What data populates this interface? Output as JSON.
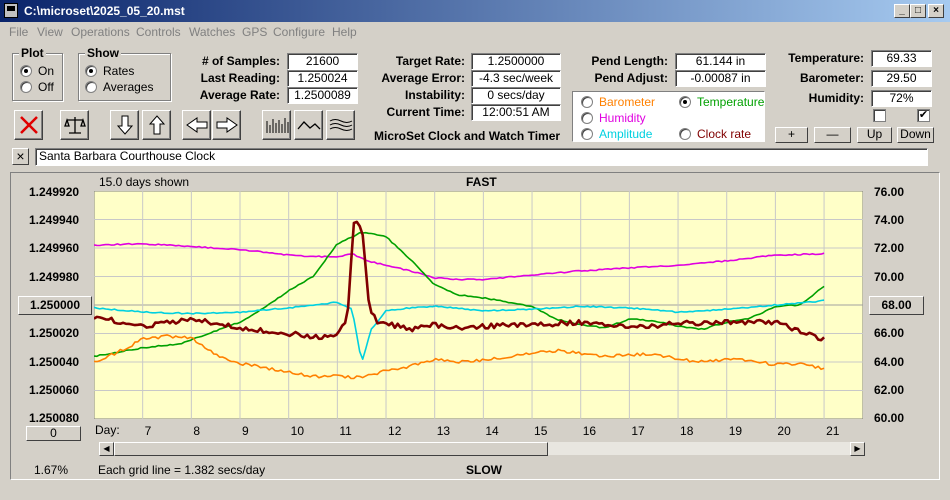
{
  "window": {
    "title": "C:\\microset\\2025_05_20.mst"
  },
  "menu": [
    "File",
    "View",
    "Operations",
    "Controls",
    "Watches",
    "GPS",
    "Configure",
    "Help"
  ],
  "plot_group": {
    "title": "Plot",
    "options": [
      "On",
      "Off"
    ],
    "selected": "On"
  },
  "show_group": {
    "title": "Show",
    "options": [
      "Rates",
      "Averages"
    ],
    "selected": "Rates"
  },
  "stats": {
    "samples_label": "# of Samples:",
    "samples": "21600",
    "last_label": "Last Reading:",
    "last": "1.250024",
    "avg_label": "Average Rate:",
    "avg": "1.2500089",
    "target_label": "Target Rate:",
    "target": "1.2500000",
    "error_label": "Average Error:",
    "error": "-4.3 sec/week",
    "instab_label": "Instability:",
    "instab": "0 secs/day",
    "time_label": "Current Time:",
    "time": "12:00:51 AM",
    "pendlen_label": "Pend Length:",
    "pendlen": "61.144 in",
    "pendadj_label": "Pend Adjust:",
    "pendadj": "-0.00087 in",
    "temp_label": "Temperature:",
    "temp": "69.33",
    "baro_label": "Barometer:",
    "baro": "29.50",
    "hum_label": "Humidity:",
    "hum": "72%"
  },
  "app_name": "MicroSet Clock and Watch Timer",
  "legend": [
    {
      "label": "Barometer",
      "color": "#ff8000",
      "selected": false
    },
    {
      "label": "Temperature",
      "color": "#00a000",
      "selected": true
    },
    {
      "label": "Humidity",
      "color": "#e000e0",
      "selected": false
    },
    {
      "label": "Amplitude",
      "color": "#00d0e0",
      "selected": false
    },
    {
      "label": "Clock rate",
      "color": "#800000",
      "selected": false
    }
  ],
  "checkboxes": [
    {
      "checked": false
    },
    {
      "checked": true
    }
  ],
  "small_buttons": {
    "plus": "+",
    "minus": "—",
    "up": "Up",
    "down": "Down"
  },
  "description_close": "×",
  "description": "Santa Barbara Courthouse Clock",
  "icons": [
    "close-x-icon",
    "balance-scale-icon",
    "arrow-down-icon",
    "arrow-up-icon",
    "arrow-left-icon",
    "arrow-right-icon",
    "bar-graph-icon",
    "wave-icon",
    "multi-wave-icon"
  ],
  "chart_top": {
    "days_shown": "15.0 days shown",
    "fast": "FAST"
  },
  "chart_bottom": {
    "pct": "1.67%",
    "grid_note": "Each grid line = 1.382 secs/day",
    "slow": "SLOW",
    "zero_button": "0"
  },
  "mid_buttons": {
    "left": "1.250000",
    "right": "68.00"
  },
  "chart_data": {
    "type": "line",
    "x_label": "Day:",
    "x_ticks": [
      7,
      8,
      9,
      10,
      11,
      12,
      13,
      14,
      15,
      16,
      17,
      18,
      19,
      20,
      21
    ],
    "xlim": [
      6.0,
      21.8
    ],
    "left_axis": {
      "ticks": [
        "1.249920",
        "1.249940",
        "1.249960",
        "1.249980",
        "1.250000",
        "1.250020",
        "1.250040",
        "1.250060",
        "1.250080"
      ],
      "range": [
        1.25008,
        1.24992
      ]
    },
    "right_axis": {
      "ticks": [
        "76.00",
        "74.00",
        "72.00",
        "70.00",
        "68.00",
        "66.00",
        "64.00",
        "62.00",
        "60.00"
      ],
      "range": [
        60,
        76
      ]
    },
    "grid": true,
    "background": "#ffffc8",
    "series": [
      {
        "name": "Humidity",
        "color": "#e000e0",
        "axis": "right",
        "x": [
          6.0,
          7.0,
          8.0,
          9.0,
          9.5,
          10.0,
          10.5,
          11.0,
          11.3,
          11.6,
          12.0,
          12.5,
          13.0,
          13.5,
          14.0,
          15.0,
          16.0,
          17.0,
          18.0,
          19.0,
          20.0,
          21.0
        ],
        "values": [
          72.2,
          72.3,
          72.1,
          71.9,
          71.7,
          71.5,
          71.4,
          71.4,
          71.6,
          71.1,
          70.8,
          70.4,
          69.9,
          69.8,
          69.8,
          70.1,
          70.4,
          70.6,
          70.8,
          71.1,
          71.5,
          71.6
        ]
      },
      {
        "name": "Temperature",
        "color": "#00a000",
        "axis": "right",
        "x": [
          6.0,
          7.0,
          7.8,
          8.5,
          9.0,
          9.5,
          10.0,
          10.5,
          11.0,
          11.5,
          12.0,
          12.5,
          13.0,
          13.5,
          14.0,
          15.0,
          15.5,
          16.0,
          16.5,
          17.0,
          17.5,
          18.0,
          18.5,
          19.0,
          19.5,
          20.0,
          20.5,
          21.0
        ],
        "values": [
          64.4,
          65.0,
          65.3,
          66.2,
          66.8,
          67.8,
          69.0,
          70.0,
          72.3,
          73.1,
          72.8,
          71.2,
          69.4,
          68.7,
          68.5,
          67.9,
          67.0,
          66.6,
          66.4,
          67.0,
          66.9,
          66.5,
          66.3,
          66.8,
          67.1,
          67.9,
          68.0,
          69.3
        ]
      },
      {
        "name": "Amplitude",
        "color": "#00d0e0",
        "axis": "right",
        "x": [
          6.0,
          7.0,
          8.0,
          9.0,
          10.0,
          10.5,
          11.0,
          11.3,
          11.5,
          11.7,
          12.0,
          12.5,
          13.0,
          14.0,
          15.0,
          16.0,
          17.0,
          18.0,
          19.0,
          20.0,
          21.0
        ],
        "values": [
          67.8,
          67.5,
          67.4,
          67.5,
          67.8,
          68.0,
          68.2,
          67.7,
          64.0,
          66.3,
          67.6,
          67.8,
          67.9,
          67.6,
          67.7,
          67.9,
          67.8,
          67.5,
          67.7,
          68.0,
          68.3
        ]
      },
      {
        "name": "Barometer",
        "color": "#ff8000",
        "axis": "right",
        "x": [
          6.0,
          6.5,
          7.0,
          7.5,
          8.0,
          8.5,
          9.0,
          9.5,
          10.0,
          10.5,
          11.0,
          11.5,
          12.0,
          12.5,
          13.0,
          13.5,
          14.0,
          14.5,
          15.0,
          15.5,
          16.0,
          16.5,
          17.0,
          17.5,
          18.0,
          18.5,
          19.0,
          19.5,
          20.0,
          20.5,
          21.0
        ],
        "values": [
          64.0,
          64.7,
          65.6,
          65.8,
          65.7,
          64.5,
          63.9,
          63.6,
          63.3,
          63.0,
          63.0,
          62.9,
          63.4,
          63.7,
          64.2,
          64.0,
          64.1,
          64.4,
          64.6,
          64.8,
          64.6,
          64.4,
          64.5,
          64.6,
          64.2,
          64.0,
          64.2,
          64.1,
          63.8,
          63.9,
          63.5
        ]
      },
      {
        "name": "Clock rate",
        "color": "#800000",
        "axis": "left",
        "x": [
          6.0,
          7.0,
          8.0,
          9.0,
          10.0,
          10.5,
          11.0,
          11.2,
          11.35,
          11.5,
          11.65,
          11.8,
          12.0,
          12.5,
          13.0,
          13.5,
          14.0,
          15.0,
          16.0,
          17.0,
          18.0,
          19.0,
          20.0,
          21.0
        ],
        "values": [
          1.250008,
          1.250015,
          1.25001,
          1.250016,
          1.25002,
          1.250022,
          1.250022,
          1.25001,
          1.249938,
          1.249945,
          1.25,
          1.250012,
          1.250013,
          1.250017,
          1.250014,
          1.250016,
          1.250015,
          1.250014,
          1.250012,
          1.250016,
          1.250013,
          1.250012,
          1.250012,
          1.250024
        ]
      }
    ]
  }
}
